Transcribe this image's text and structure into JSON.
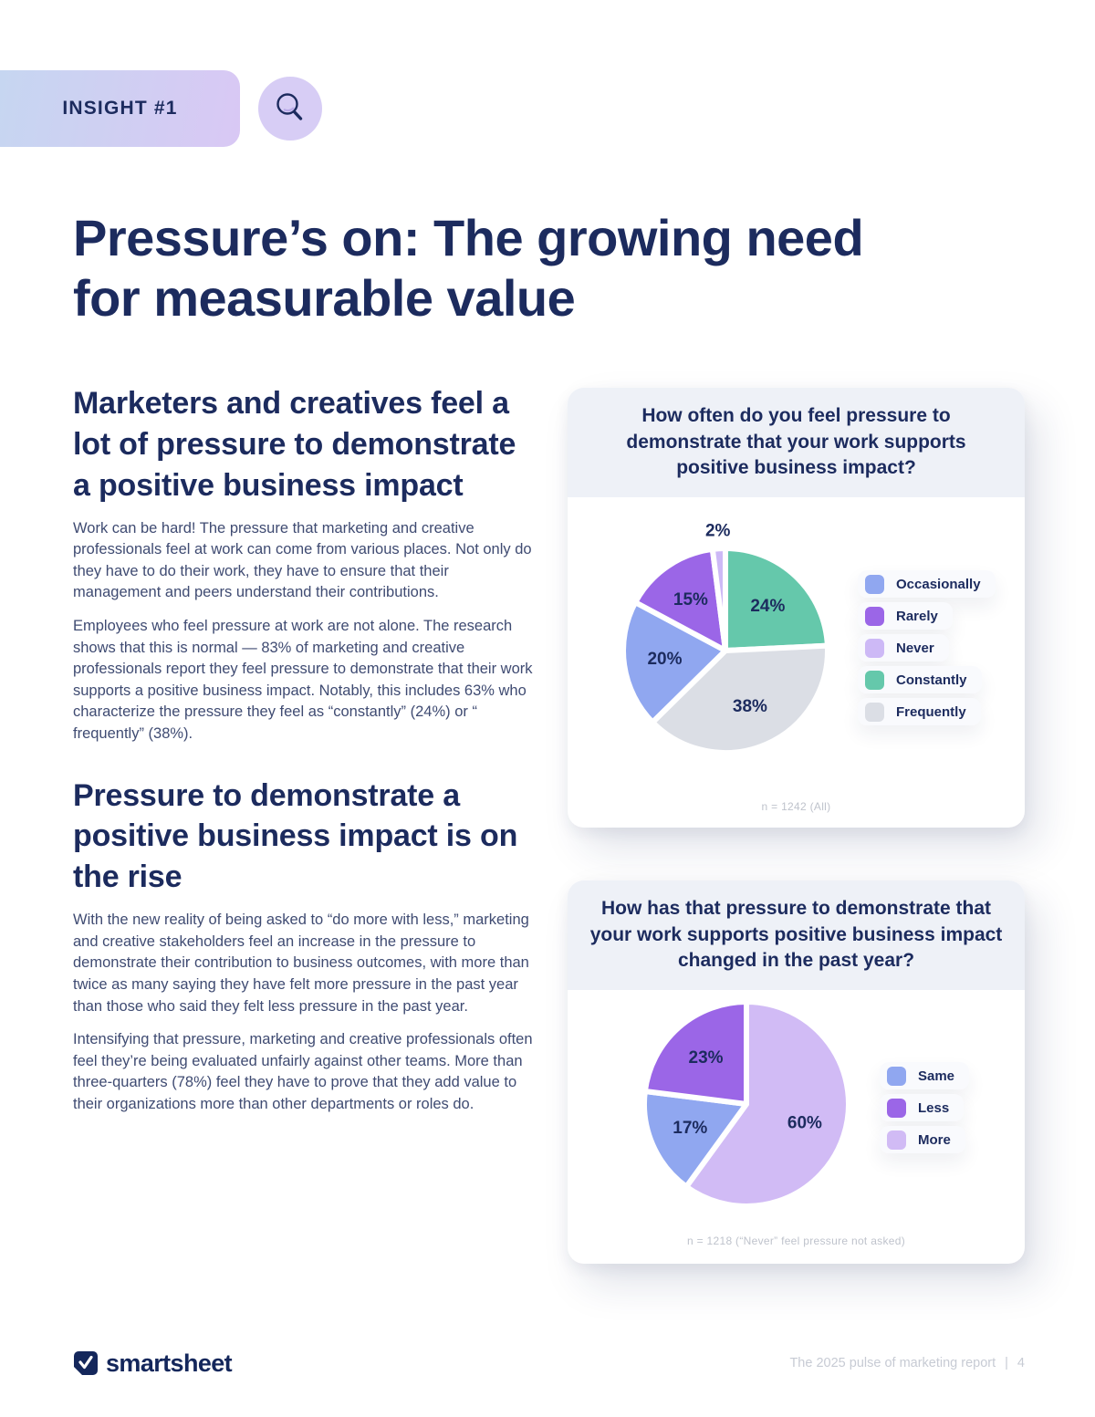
{
  "badge": {
    "label": "INSIGHT #1"
  },
  "icons": {
    "badge_icon": "magnifier",
    "brand_icon": "smartsheet-check"
  },
  "title": "Pressure’s on: The growing need for measurable value",
  "sections": [
    {
      "heading": "Marketers and creatives feel a lot of pressure to demonstrate a positive business impact",
      "paragraphs": [
        "Work can be hard! The pressure that marketing and creative professionals feel at work can come from various places. Not only do they have to do their work, they have to ensure that their management and peers understand their contributions.",
        "Employees who feel pressure at work are not alone. The research shows that this is normal — 83% of marketing and creative professionals report they feel pressure to demonstrate that their work supports a positive business impact. Notably, this includes 63% who characterize the pressure they feel as “constantly” (24%) or “ frequently” (38%)."
      ]
    },
    {
      "heading": "Pressure to demonstrate a positive business impact is on the rise",
      "paragraphs": [
        "With the new reality of being asked to “do more with less,” marketing and creative stakeholders feel an increase in the pressure to demonstrate their contribution to business outcomes, with more than twice as many saying they have felt more pressure in the past year than those who said they felt less pressure in the past year.",
        "Intensifying that pressure, marketing and creative professionals often feel they’re being evaluated unfairly against other teams. More than three-quarters (78%) feel they have to prove that they add value to their organizations more than other departments or roles do."
      ]
    }
  ],
  "chart_data": [
    {
      "type": "pie",
      "title": "How often do you feel pressure to demonstrate that your work supports positive business impact?",
      "slices": [
        {
          "label": "Constantly",
          "value": 24,
          "color": "#65c8ab"
        },
        {
          "label": "Frequently",
          "value": 38,
          "color": "#dbdee5"
        },
        {
          "label": "Occasionally",
          "value": 20,
          "color": "#90a7f0"
        },
        {
          "label": "Rarely",
          "value": 15,
          "color": "#9b66e7"
        },
        {
          "label": "Never",
          "value": 2,
          "color": "#cdb9f6"
        }
      ],
      "legend": [
        {
          "label": "Occasionally",
          "color": "#90a7f0"
        },
        {
          "label": "Rarely",
          "color": "#9b66e7"
        },
        {
          "label": "Never",
          "color": "#cdb9f6"
        },
        {
          "label": "Constantly",
          "color": "#65c8ab"
        },
        {
          "label": "Frequently",
          "color": "#dbdee5"
        }
      ],
      "legend_position": "right",
      "note": "n = 1242 (All)"
    },
    {
      "type": "pie",
      "title": "How has that pressure to demonstrate that your work supports positive business impact changed in the past year?",
      "slices": [
        {
          "label": "More",
          "value": 60,
          "color": "#d1bbf5"
        },
        {
          "label": "Same",
          "value": 17,
          "color": "#90a7f0"
        },
        {
          "label": "Less",
          "value": 23,
          "color": "#9b66e7"
        }
      ],
      "legend": [
        {
          "label": "Same",
          "color": "#90a7f0"
        },
        {
          "label": "Less",
          "color": "#9b66e7"
        },
        {
          "label": "More",
          "color": "#d1bbf5"
        }
      ],
      "legend_position": "right",
      "note": "n = 1218 (“Never” feel pressure not asked)"
    }
  ],
  "footer": {
    "brand": "smartsheet",
    "report": "The 2025 pulse of marketing report",
    "divider": "|",
    "page": "4"
  }
}
